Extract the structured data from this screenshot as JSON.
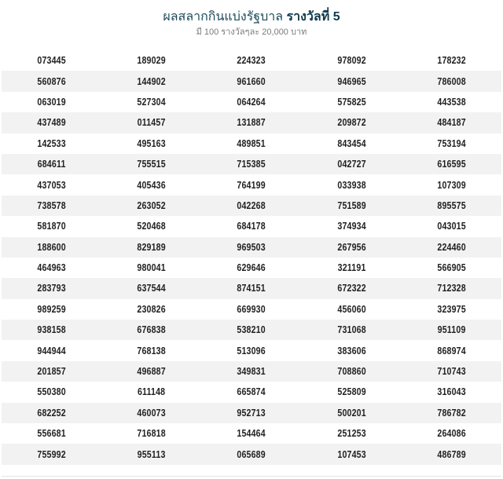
{
  "header": {
    "title": "ผลสลากกินแบ่งรัฐบาล",
    "prize": "รางวัลที่ 5",
    "subtitle": "มี 100 รางวัลๆละ 20,000 บาท"
  },
  "rows": [
    [
      "073445",
      "189029",
      "224323",
      "978092",
      "178232"
    ],
    [
      "560876",
      "144902",
      "961660",
      "946965",
      "786008"
    ],
    [
      "063019",
      "527304",
      "064264",
      "575825",
      "443538"
    ],
    [
      "437489",
      "011457",
      "131887",
      "209872",
      "484187"
    ],
    [
      "142533",
      "495163",
      "489851",
      "843454",
      "753194"
    ],
    [
      "684611",
      "755515",
      "715385",
      "042727",
      "616595"
    ],
    [
      "437053",
      "405436",
      "764199",
      "033938",
      "107309"
    ],
    [
      "738578",
      "263052",
      "042268",
      "751589",
      "895575"
    ],
    [
      "581870",
      "520468",
      "684178",
      "374934",
      "043015"
    ],
    [
      "188600",
      "829189",
      "969503",
      "267956",
      "224460"
    ],
    [
      "464963",
      "980041",
      "629646",
      "321191",
      "566905"
    ],
    [
      "283793",
      "637544",
      "874151",
      "672322",
      "712328"
    ],
    [
      "989259",
      "230826",
      "669930",
      "456060",
      "323975"
    ],
    [
      "938158",
      "676838",
      "538210",
      "731068",
      "951109"
    ],
    [
      "944944",
      "768138",
      "513096",
      "383606",
      "868974"
    ],
    [
      "201857",
      "496887",
      "349831",
      "708860",
      "710743"
    ],
    [
      "550380",
      "611148",
      "665874",
      "525809",
      "316043"
    ],
    [
      "682252",
      "460073",
      "952713",
      "500201",
      "786782"
    ],
    [
      "556681",
      "716818",
      "154464",
      "251253",
      "264086"
    ],
    [
      "755992",
      "955113",
      "065689",
      "107453",
      "486789"
    ]
  ]
}
